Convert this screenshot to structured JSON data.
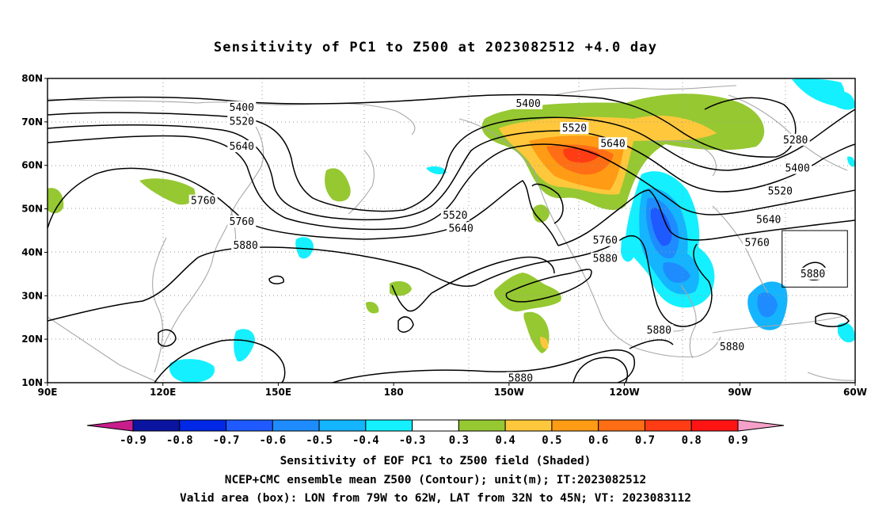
{
  "title": "Sensitivity of PC1 to Z500 at 2023082512 +4.0 day",
  "captions": [
    "Sensitivity of EOF PC1 to Z500 field (Shaded)",
    "NCEP+CMC ensemble mean Z500 (Contour); unit(m); IT:2023082512",
    "Valid area (box): LON from 79W to 62W, LAT from 32N to 45N; VT: 2023083112"
  ],
  "map": {
    "lon_range": [
      90,
      300
    ],
    "lat_range": [
      10,
      80
    ],
    "lat_ticks": [
      {
        "lat": 80,
        "label": "80N"
      },
      {
        "lat": 70,
        "label": "70N"
      },
      {
        "lat": 60,
        "label": "60N"
      },
      {
        "lat": 50,
        "label": "50N"
      },
      {
        "lat": 40,
        "label": "40N"
      },
      {
        "lat": 30,
        "label": "30N"
      },
      {
        "lat": 20,
        "label": "20N"
      },
      {
        "lat": 10,
        "label": "10N"
      }
    ],
    "lon_ticks": [
      {
        "lon": 90,
        "label": "90E"
      },
      {
        "lon": 120,
        "label": "120E"
      },
      {
        "lon": 150,
        "label": "150E"
      },
      {
        "lon": 180,
        "label": "180"
      },
      {
        "lon": 210,
        "label": "150W"
      },
      {
        "lon": 240,
        "label": "120W"
      },
      {
        "lon": 270,
        "label": "90W"
      },
      {
        "lon": 300,
        "label": "60W"
      }
    ],
    "valid_box": {
      "lon_from": "79W",
      "lon_to": "62W",
      "lat_from": "32N",
      "lat_to": "45N"
    },
    "contour_labels": [
      {
        "text": "5400",
        "lon": 140.5,
        "lat": 73.3
      },
      {
        "text": "5400",
        "lon": 215,
        "lat": 74.2
      },
      {
        "text": "5520",
        "lon": 140.5,
        "lat": 70.1
      },
      {
        "text": "5520",
        "lon": 227,
        "lat": 68.5
      },
      {
        "text": "5640",
        "lon": 140.5,
        "lat": 64.3
      },
      {
        "text": "5640",
        "lon": 237,
        "lat": 65.0
      },
      {
        "text": "5760",
        "lon": 130.5,
        "lat": 51.8
      },
      {
        "text": "5760",
        "lon": 140.5,
        "lat": 47.0
      },
      {
        "text": "5880",
        "lon": 141.5,
        "lat": 41.5
      },
      {
        "text": "5520",
        "lon": 196,
        "lat": 48.5
      },
      {
        "text": "5640",
        "lon": 197.5,
        "lat": 45.5
      },
      {
        "text": "5760",
        "lon": 235,
        "lat": 42.7
      },
      {
        "text": "5880",
        "lon": 235,
        "lat": 38.5
      },
      {
        "text": "5880",
        "lon": 249,
        "lat": 22.0
      },
      {
        "text": "5880",
        "lon": 268,
        "lat": 18.2
      },
      {
        "text": "5880",
        "lon": 213,
        "lat": 11.0
      },
      {
        "text": "5280",
        "lon": 284.5,
        "lat": 65.8
      },
      {
        "text": "5400",
        "lon": 285,
        "lat": 59.3
      },
      {
        "text": "5520",
        "lon": 280.5,
        "lat": 54.0
      },
      {
        "text": "5640",
        "lon": 277.5,
        "lat": 47.5
      },
      {
        "text": "5760",
        "lon": 274.5,
        "lat": 42.2
      },
      {
        "text": "5880",
        "lon": 289,
        "lat": 35.0
      }
    ]
  },
  "colorbar": {
    "colors": [
      "#c81e8c",
      "#0a14a0",
      "#0028e6",
      "#1e5aff",
      "#1e8cff",
      "#14b4ff",
      "#14f0ff",
      "#ffffff",
      "#96c832",
      "#ffc83c",
      "#ff9b14",
      "#ff6e14",
      "#ff3c14",
      "#ff1414",
      "#f5a0c8"
    ],
    "labels": [
      "-0.9",
      "-0.8",
      "-0.7",
      "-0.6",
      "-0.5",
      "-0.4",
      "-0.3",
      "0.3",
      "0.4",
      "0.5",
      "0.6",
      "0.7",
      "0.8",
      "0.9"
    ]
  }
}
